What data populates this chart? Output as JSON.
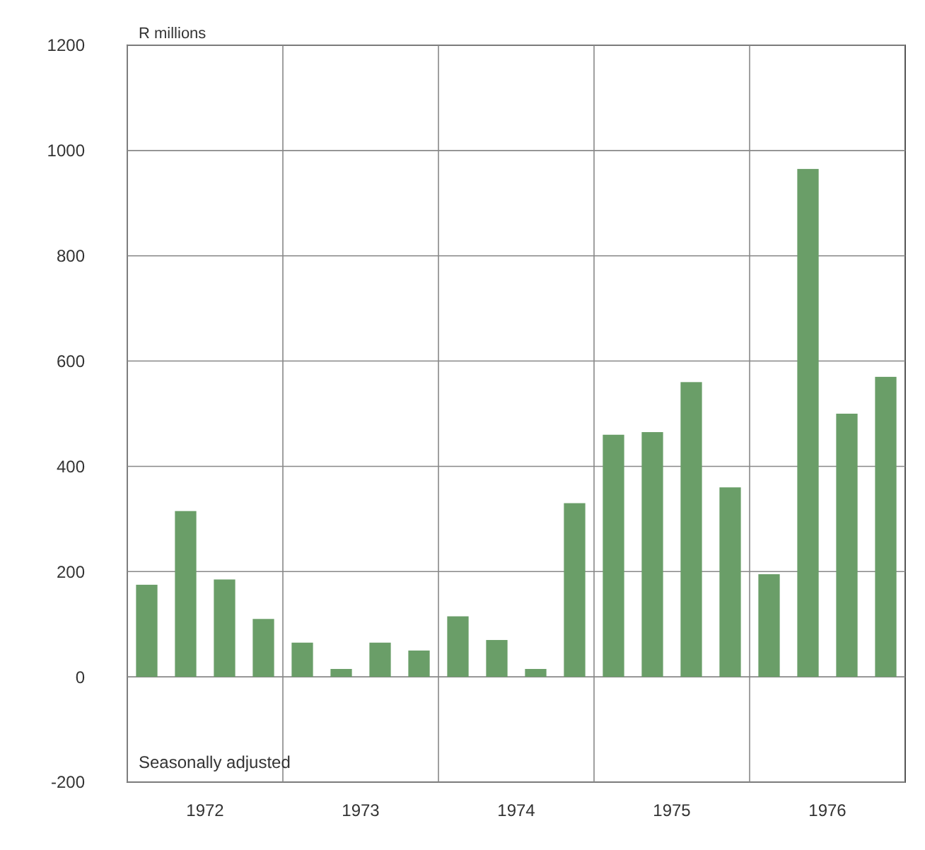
{
  "chart_data": {
    "type": "bar",
    "ylabel": "R millions",
    "annotations": [
      "Seasonally adjusted"
    ],
    "x": [
      1972.125,
      1972.375,
      1972.625,
      1972.875,
      1973.125,
      1973.375,
      1973.625,
      1973.875,
      1974.125,
      1974.375,
      1974.625,
      1974.875,
      1975.125,
      1975.375,
      1975.625,
      1975.875,
      1976.125,
      1976.375,
      1976.625,
      1976.875
    ],
    "values": [
      175,
      315,
      185,
      110,
      65,
      15,
      65,
      50,
      115,
      70,
      15,
      330,
      460,
      465,
      560,
      360,
      195,
      965,
      500,
      570
    ],
    "color": "#6a9e68",
    "xlim": [
      1972,
      1977
    ],
    "xticks": [
      {
        "value": 1972,
        "label": null
      },
      {
        "value": 1972.5,
        "label": "1972"
      },
      {
        "value": 1973,
        "label": null
      },
      {
        "value": 1973.5,
        "label": "1973"
      },
      {
        "value": 1974,
        "label": null
      },
      {
        "value": 1974.5,
        "label": "1974"
      },
      {
        "value": 1975,
        "label": null
      },
      {
        "value": 1975.5,
        "label": "1975"
      },
      {
        "value": 1976,
        "label": null
      },
      {
        "value": 1976.5,
        "label": "1976"
      }
    ],
    "ylim": [
      -200,
      1200
    ],
    "yticks": [
      -200,
      0,
      200,
      400,
      600,
      800,
      1000,
      1200
    ],
    "grid": true
  }
}
